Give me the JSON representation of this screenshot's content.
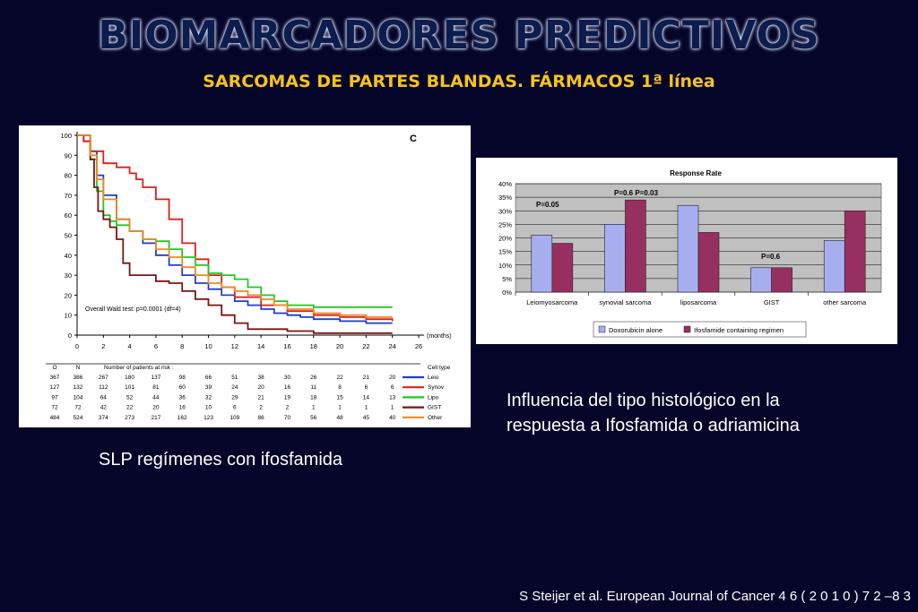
{
  "header": {
    "title": "BIOMARCADORES PREDICTIVOS",
    "subtitle": "SARCOMAS DE PARTES BLANDAS. FÁRMACOS 1ª línea"
  },
  "captions": {
    "left": "SLP regímenes con ifosfamida",
    "right_line1": "Influencia del tipo histológico en la",
    "right_line2": "respuesta a Ifosfamida o adriamicina"
  },
  "citation": "S Steijer et al. European Journal of Cancer 4 6 ( 2 0 1 0 ) 7 2 –8 3",
  "colors": {
    "Leio": "#1f3fcc",
    "Synov": "#dd1f1f",
    "Lipo": "#22c922",
    "GIST": "#7a1515",
    "Other": "#f08a24",
    "doxo": "#a7aef0",
    "ifos": "#973060"
  },
  "chart_data": [
    {
      "type": "line",
      "panel_label": "C",
      "xlabel": "(months)",
      "x_ticks": [
        0,
        2,
        4,
        6,
        8,
        10,
        12,
        14,
        16,
        18,
        20,
        22,
        24,
        26
      ],
      "y_ticks": [
        0,
        10,
        20,
        30,
        40,
        50,
        60,
        70,
        80,
        90,
        100
      ],
      "xlim": [
        0,
        26
      ],
      "ylim": [
        0,
        100
      ],
      "annotation": "Overall Wald test: p=0.0001 (df=4)",
      "legend_title": "Cell type",
      "series": [
        {
          "name": "Leio",
          "x": [
            0,
            0.5,
            1,
            1.5,
            2,
            3,
            4,
            5,
            6,
            7,
            8,
            9,
            10,
            11,
            12,
            13,
            14,
            15,
            16,
            17,
            18,
            19,
            20,
            21,
            22,
            23,
            24
          ],
          "y": [
            100,
            97,
            92,
            80,
            70,
            58,
            52,
            46,
            40,
            35,
            30,
            26,
            23,
            20,
            17,
            15,
            13,
            11,
            10,
            9,
            8,
            8,
            7,
            7,
            6,
            6,
            6
          ]
        },
        {
          "name": "Synov",
          "x": [
            0,
            0.5,
            1,
            2,
            3,
            4,
            4.5,
            5,
            6,
            7,
            8,
            9,
            10,
            11,
            12,
            14,
            16,
            18,
            20,
            22,
            24
          ],
          "y": [
            100,
            97,
            92,
            86,
            84,
            81,
            78,
            74,
            68,
            58,
            46,
            38,
            30,
            24,
            19,
            15,
            12,
            10,
            9,
            8,
            7
          ]
        },
        {
          "name": "Lipo",
          "x": [
            0,
            1,
            1.5,
            2,
            2.5,
            3,
            4,
            5,
            6,
            7,
            8,
            9,
            10,
            11,
            12,
            13,
            14,
            15,
            16,
            18,
            20,
            22,
            24
          ],
          "y": [
            100,
            88,
            72,
            60,
            57,
            55,
            52,
            48,
            47,
            43,
            39,
            35,
            31,
            30,
            28,
            24,
            20,
            17,
            15,
            14,
            14,
            14,
            14
          ]
        },
        {
          "name": "GIST",
          "x": [
            0,
            1,
            1.3,
            1.6,
            2,
            2.5,
            3,
            3.5,
            4,
            5,
            6,
            7,
            8,
            9,
            10,
            11,
            12,
            13,
            16,
            18,
            24
          ],
          "y": [
            100,
            88,
            74,
            62,
            58,
            54,
            48,
            36,
            30,
            30,
            27,
            26,
            22,
            18,
            15,
            10,
            6,
            3,
            2,
            1,
            1
          ]
        },
        {
          "name": "Other",
          "x": [
            0,
            1,
            1.5,
            2,
            3,
            4,
            5,
            6,
            7,
            8,
            9,
            10,
            11,
            12,
            13,
            14,
            15,
            16,
            18,
            20,
            22,
            24
          ],
          "y": [
            100,
            90,
            78,
            68,
            58,
            52,
            48,
            43,
            39,
            34,
            30,
            26,
            24,
            22,
            20,
            18,
            15,
            13,
            11,
            10,
            9,
            9
          ]
        }
      ],
      "risk_table": {
        "headers": [
          "O",
          "N",
          "Number of patients at risk :"
        ],
        "rows": [
          {
            "O": "367",
            "N": "386",
            "counts": [
              "267",
              "180",
              "137",
              "98",
              "66",
              "51",
              "38",
              "30",
              "26",
              "22",
              "21",
              "20"
            ],
            "label": "Leio"
          },
          {
            "O": "127",
            "N": "132",
            "counts": [
              "112",
              "101",
              "81",
              "60",
              "39",
              "24",
              "20",
              "16",
              "11",
              "8",
              "6",
              "6"
            ],
            "label": "Synov"
          },
          {
            "O": "97",
            "N": "104",
            "counts": [
              "64",
              "52",
              "44",
              "36",
              "32",
              "29",
              "21",
              "19",
              "18",
              "15",
              "14",
              "13"
            ],
            "label": "Lipo"
          },
          {
            "O": "72",
            "N": "72",
            "counts": [
              "42",
              "22",
              "20",
              "16",
              "10",
              "6",
              "2",
              "2",
              "1",
              "1",
              "1",
              "1"
            ],
            "label": "GIST"
          },
          {
            "O": "484",
            "N": "524",
            "counts": [
              "374",
              "273",
              "217",
              "162",
              "123",
              "109",
              "86",
              "70",
              "56",
              "48",
              "45",
              "40"
            ],
            "label": "Other"
          }
        ]
      }
    },
    {
      "type": "bar",
      "title": "Response Rate",
      "categories": [
        "Leiomyosarcoma",
        "synovial sarcoma",
        "liposarcoma",
        "GIST",
        "other sarcoma"
      ],
      "ylim": [
        0,
        40
      ],
      "y_ticks": [
        "0%",
        "5%",
        "10%",
        "15%",
        "20%",
        "25%",
        "30%",
        "35%",
        "40%"
      ],
      "series": [
        {
          "name": "Doxorubicin alone",
          "values": [
            21,
            25,
            32,
            9,
            19
          ]
        },
        {
          "name": "Ifosfamide containing regimen",
          "values": [
            18,
            34,
            22,
            9,
            30
          ]
        }
      ],
      "annotations": [
        "P=0.05",
        "P=0.6 P=0.03",
        "P=0.6"
      ]
    }
  ]
}
